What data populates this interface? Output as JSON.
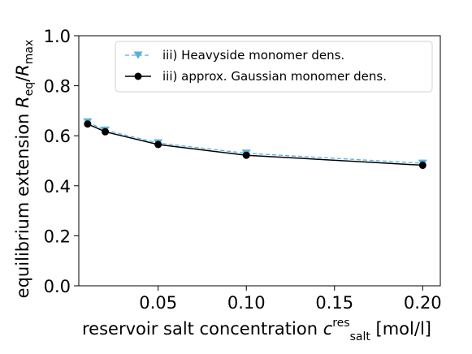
{
  "chart_data": {
    "type": "line",
    "xlabel": {
      "prefix": "reservoir salt concentration ",
      "symbol": "c",
      "sup": "res",
      "sub": "salt",
      "suffix": " [mol/l]"
    },
    "ylabel": {
      "prefix": "equilibrium extension ",
      "num_symbol": "R",
      "num_sub": "eq",
      "slash": "/",
      "den_symbol": "R",
      "den_sub": "max"
    },
    "xlim": [
      0.005,
      0.21
    ],
    "ylim": [
      0.0,
      1.0
    ],
    "x_ticks": [
      0.05,
      0.1,
      0.15,
      0.2
    ],
    "x_tick_labels": [
      "0.05",
      "0.10",
      "0.15",
      "0.20"
    ],
    "y_ticks": [
      0.0,
      0.2,
      0.4,
      0.6,
      0.8,
      1.0
    ],
    "y_tick_labels": [
      "0.0",
      "0.2",
      "0.4",
      "0.6",
      "0.8",
      "1.0"
    ],
    "grid": false,
    "legend_position": "top-right",
    "series": [
      {
        "name": "iii) Heavyside monomer dens.",
        "color": "#5aaee0",
        "line_style": "dashed",
        "marker": "triangle-down",
        "x": [
          0.01,
          0.02,
          0.05,
          0.1,
          0.2
        ],
        "y": [
          0.655,
          0.622,
          0.571,
          0.53,
          0.49
        ]
      },
      {
        "name": "iii) approx. Gaussian monomer dens.",
        "color": "#000000",
        "line_style": "solid",
        "marker": "circle",
        "x": [
          0.01,
          0.02,
          0.05,
          0.1,
          0.2
        ],
        "y": [
          0.647,
          0.616,
          0.565,
          0.522,
          0.482
        ]
      }
    ]
  }
}
